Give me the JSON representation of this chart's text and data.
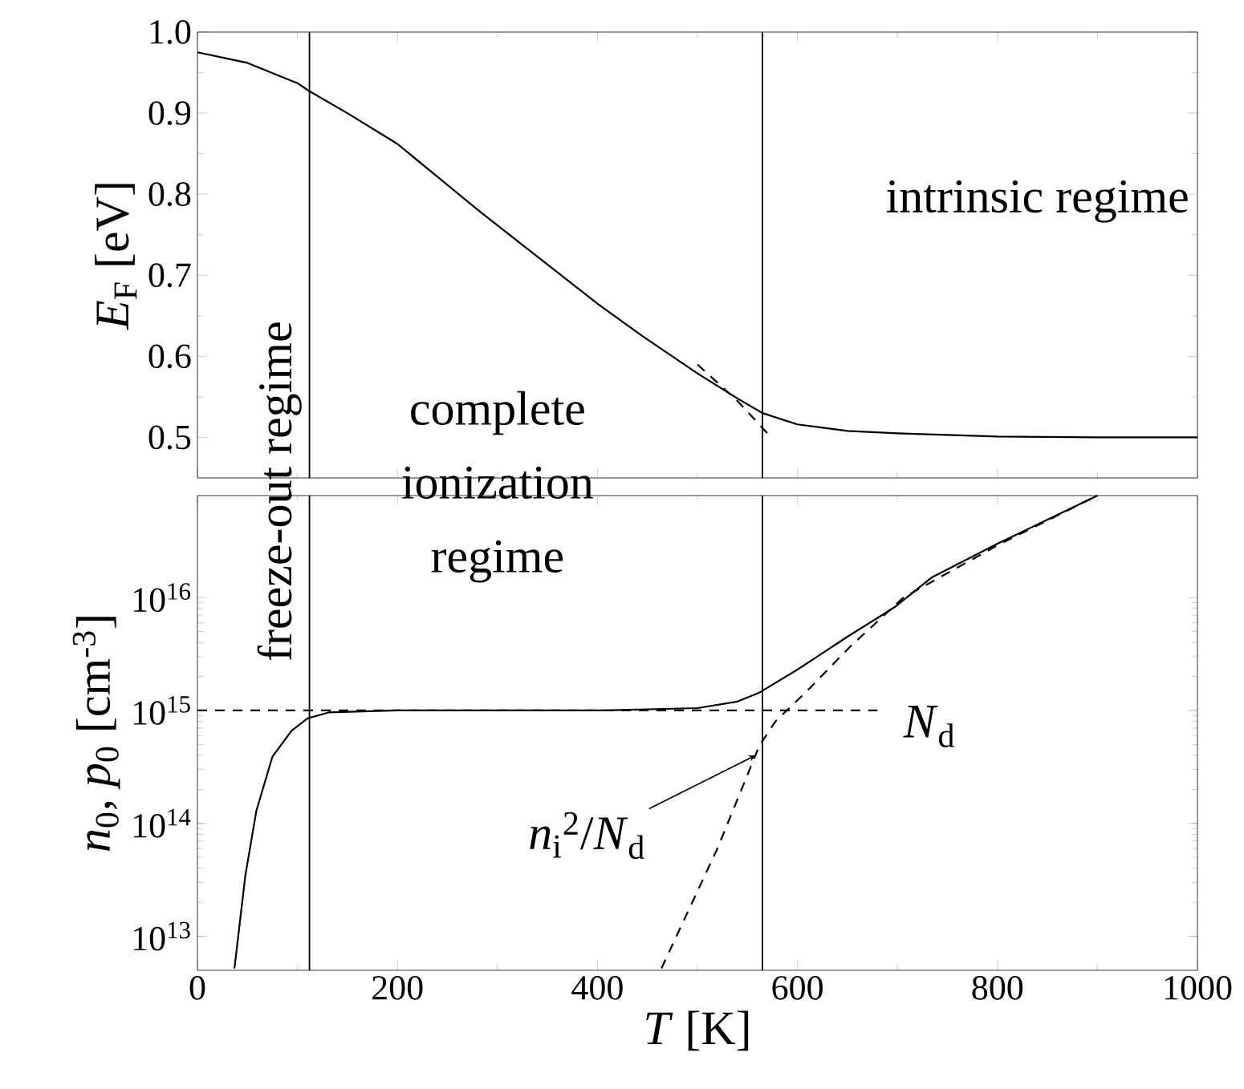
{
  "chart_data": [
    {
      "type": "line",
      "ylabel": "*E*$_{F}$ [eV]",
      "xlim": [
        0,
        1000
      ],
      "ylim": [
        0.45,
        1.0
      ],
      "xticks": [
        0,
        200,
        400,
        600,
        800,
        1000
      ],
      "yticks": [
        {
          "value": 0.5,
          "label": "0.5"
        },
        {
          "value": 0.6,
          "label": "0.6"
        },
        {
          "value": 0.7,
          "label": "0.7"
        },
        {
          "value": 0.8,
          "label": "0.8"
        },
        {
          "value": 0.9,
          "label": "0.9"
        },
        {
          "value": 1.0,
          "label": "1.0"
        }
      ],
      "tick_labels": "y",
      "grid": false,
      "series": [
        {
          "color": "#000000",
          "line_style": "solid",
          "x": [
            0,
            50,
            100,
            112,
            150,
            200,
            284,
            400,
            445,
            500,
            540,
            565,
            600,
            650,
            700,
            800,
            900,
            1000
          ],
          "values": [
            0.975,
            0.962,
            0.937,
            0.927,
            0.9,
            0.862,
            0.777,
            0.665,
            0.625,
            0.579,
            0.548,
            0.53,
            0.516,
            0.508,
            0.505,
            0.501,
            0.5,
            0.5
          ]
        },
        {
          "color": "#000000",
          "line_style": "dashed",
          "x": [
            500,
            540,
            570
          ],
          "values": [
            0.59,
            0.545,
            0.505
          ]
        }
      ],
      "ref_lines": [
        {
          "axis": "x",
          "value": 112
        },
        {
          "axis": "x",
          "value": 565
        }
      ],
      "annotations": [
        "intrinsic regime",
        "complete ionization regime",
        "freeze-out regime"
      ]
    },
    {
      "type": "line",
      "xlabel": "*T* [K]",
      "ylabel": "*n*$_{0}$, *p*$_{0}$ [cm$^{-3}$]",
      "log": "y",
      "xlim": [
        0,
        1000
      ],
      "ylim": [
        5000000000000.0,
        8e+16
      ],
      "xticks": [
        0,
        200,
        400,
        600,
        800,
        1000
      ],
      "yticks": [
        {
          "value": 10000000000000.0,
          "label": "10$^{13}$"
        },
        {
          "value": 100000000000000.0,
          "label": "10$^{14}$"
        },
        {
          "value": 1000000000000000.0,
          "label": "10$^{15}$"
        },
        {
          "value": 1e+16,
          "label": "10$^{16}$"
        }
      ],
      "grid": false,
      "series": [
        {
          "color": "#000000",
          "line_style": "solid",
          "x": [
            37,
            48,
            59,
            75,
            94,
            110,
            131,
            200,
            400,
            500,
            540,
            562,
            600,
            650,
            697,
            734,
            800,
            850,
            900
          ],
          "values": [
            5200000000000.0,
            35000000000000.0,
            130000000000000.0,
            390000000000000.0,
            660000000000000.0,
            850000000000000.0,
            960000000000000.0,
            1000000000000000.0,
            1000000000000000.0,
            1050000000000000.0,
            1200000000000000.0,
            1440000000000000.0,
            2300000000000000.0,
            4500000000000000.0,
            8200000000000000.0,
            1.5e+16,
            3e+16,
            4.9e+16,
            8e+16
          ]
        },
        {
          "color": "#000000",
          "line_style": "dashed",
          "x": [
            0,
            680
          ],
          "values": [
            1000000000000000.0,
            1000000000000000.0
          ]
        },
        {
          "color": "#000000",
          "line_style": "dashed",
          "x": [
            464,
            520,
            562,
            578,
            610,
            653,
            706,
            800,
            900
          ],
          "values": [
            5200000000000.0,
            60000000000000.0,
            490000000000000.0,
            800000000000000.0,
            1500000000000000.0,
            3700000000000000.0,
            1e+16,
            2.9e+16,
            8e+16
          ]
        }
      ],
      "ref_lines": [
        {
          "axis": "x",
          "value": 112
        },
        {
          "axis": "x",
          "value": 565
        }
      ],
      "annotations": [
        {
          "text": "*N*$_{d}$",
          "x": 680,
          "y": 1000000000000000.0
        },
        {
          "text": "*n*$_{i}$$^{2}$/*N*$_{d}$",
          "x": 558,
          "y": 400000000000000.0
        }
      ]
    }
  ]
}
